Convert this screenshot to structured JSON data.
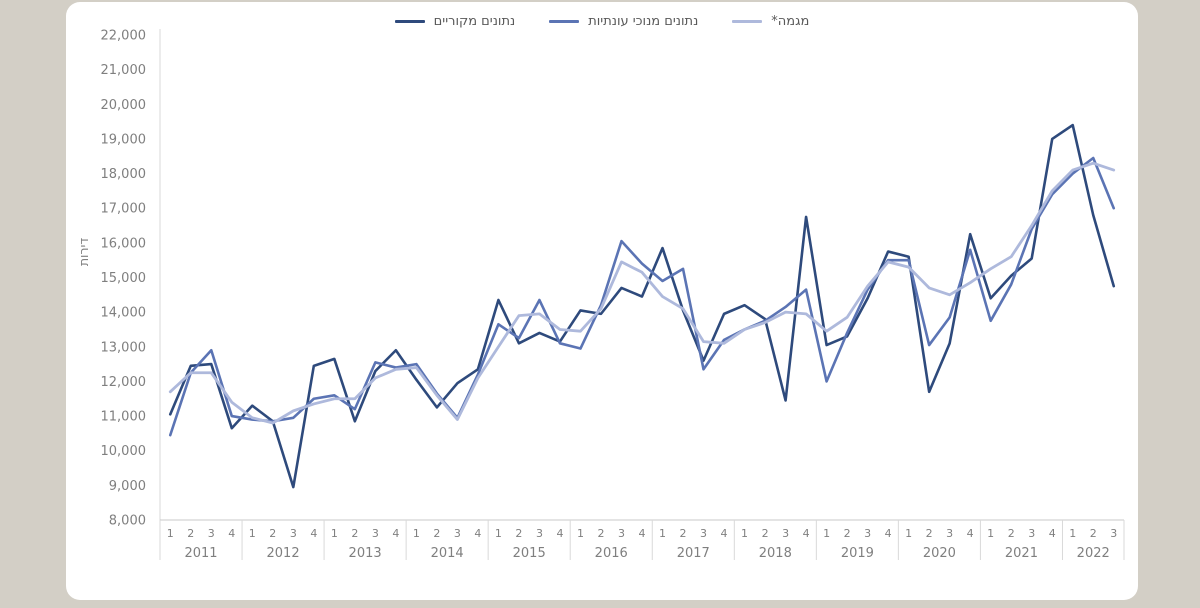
{
  "page": {
    "background": "#d3cfc6",
    "panel_background": "#ffffff"
  },
  "legend": {
    "items": [
      {
        "label": "נתונים מקוריים",
        "color": "#2e4a7c"
      },
      {
        "label": "נתונים מנוכי עונתיות",
        "color": "#5b74b4"
      },
      {
        "label": "מגמה*",
        "color": "#aeb9dc"
      }
    ]
  },
  "axis": {
    "line_color": "#d9d9d9",
    "x_line_color": "#c9c9c9",
    "label_color": "#7f7f7f"
  },
  "chart_data": {
    "type": "line",
    "title": "",
    "ylabel": "דירות",
    "ylim": [
      8000,
      22000
    ],
    "ytick_step": 1000,
    "ytick_labels": [
      "22,000",
      "21,000",
      "20,000",
      "19,000",
      "18,000",
      "17,000",
      "16,000",
      "15,000",
      "14,000",
      "13,000",
      "12,000",
      "11,000",
      "10,000",
      "9,000",
      "8,000"
    ],
    "grid": false,
    "legend_position": "top",
    "years": [
      {
        "label": "2011",
        "quarters": [
          "1",
          "2",
          "3",
          "4"
        ]
      },
      {
        "label": "2012",
        "quarters": [
          "1",
          "2",
          "3",
          "4"
        ]
      },
      {
        "label": "2013",
        "quarters": [
          "1",
          "2",
          "3",
          "4"
        ]
      },
      {
        "label": "2014",
        "quarters": [
          "1",
          "2",
          "3",
          "4"
        ]
      },
      {
        "label": "2015",
        "quarters": [
          "1",
          "2",
          "3",
          "4"
        ]
      },
      {
        "label": "2016",
        "quarters": [
          "1",
          "2",
          "3",
          "4"
        ]
      },
      {
        "label": "2017",
        "quarters": [
          "1",
          "2",
          "3",
          "4"
        ]
      },
      {
        "label": "2018",
        "quarters": [
          "1",
          "2",
          "3",
          "4"
        ]
      },
      {
        "label": "2019",
        "quarters": [
          "1",
          "2",
          "3",
          "4"
        ]
      },
      {
        "label": "2020",
        "quarters": [
          "1",
          "2",
          "3",
          "4"
        ]
      },
      {
        "label": "2021",
        "quarters": [
          "1",
          "2",
          "3",
          "4"
        ]
      },
      {
        "label": "2022",
        "quarters": [
          "1",
          "2",
          "3"
        ]
      }
    ],
    "series": [
      {
        "name": "נתונים מקוריים",
        "color": "#2e4a7c",
        "stroke_width": 2.6,
        "values": [
          11050,
          12450,
          12500,
          10650,
          11300,
          10850,
          8950,
          12450,
          12650,
          10850,
          12300,
          12900,
          12050,
          11250,
          11950,
          12350,
          14350,
          13100,
          13400,
          13150,
          14050,
          13950,
          14700,
          14450,
          15850,
          14050,
          12600,
          13950,
          14200,
          13800,
          11450,
          16750,
          13050,
          13300,
          14400,
          15750,
          15600,
          11700,
          13100,
          16250,
          14400,
          15050,
          15550,
          19000,
          19400,
          16800,
          14750
        ]
      },
      {
        "name": "נתונים מנוכי עונתיות",
        "color": "#5b74b4",
        "stroke_width": 2.6,
        "values": [
          10450,
          12250,
          12900,
          11000,
          10900,
          10850,
          10950,
          11500,
          11600,
          11200,
          12550,
          12400,
          12500,
          11650,
          10950,
          12200,
          13650,
          13250,
          14350,
          13100,
          12950,
          14200,
          16050,
          15400,
          14900,
          15250,
          12350,
          13200,
          13500,
          13750,
          14150,
          14650,
          12000,
          13400,
          14650,
          15500,
          15500,
          13050,
          13850,
          15800,
          13750,
          14800,
          16400,
          17400,
          18000,
          18450,
          17000
        ]
      },
      {
        "name": "מגמה*",
        "color": "#aeb9dc",
        "stroke_width": 2.8,
        "values": [
          11700,
          12250,
          12250,
          11400,
          10950,
          10800,
          11150,
          11350,
          11500,
          11500,
          12100,
          12350,
          12400,
          11600,
          10900,
          12100,
          13000,
          13900,
          13950,
          13500,
          13450,
          14100,
          15450,
          15150,
          14450,
          14100,
          13150,
          13100,
          13500,
          13700,
          14000,
          13950,
          13450,
          13850,
          14750,
          15450,
          15300,
          14700,
          14500,
          14850,
          15250,
          15600,
          16500,
          17500,
          18100,
          18300,
          18100
        ]
      }
    ]
  }
}
